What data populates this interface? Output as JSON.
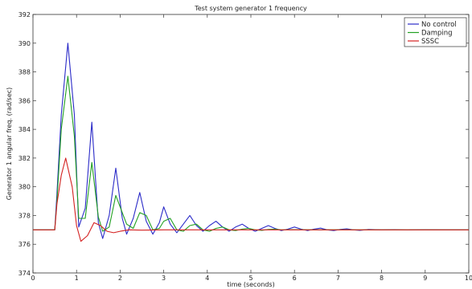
{
  "chart_data": {
    "type": "line",
    "title": "Test system generator 1 frequency",
    "xlabel": "time (seconds)",
    "ylabel": "Generator 1 angular freq. (rad/sec)",
    "xlim": [
      0,
      10
    ],
    "ylim": [
      374,
      392
    ],
    "xticks": [
      "0",
      "1",
      "2",
      "3",
      "4",
      "5",
      "6",
      "7",
      "8",
      "9",
      "10"
    ],
    "yticks": [
      "374",
      "376",
      "378",
      "380",
      "382",
      "384",
      "386",
      "388",
      "390",
      "392"
    ],
    "grid": false,
    "legend_position": "top-right",
    "series": [
      {
        "name": "No control",
        "color": "#2b2bc8",
        "x": [
          0,
          0.5,
          0.55,
          0.65,
          0.8,
          0.95,
          1.05,
          1.2,
          1.35,
          1.5,
          1.6,
          1.75,
          1.9,
          2.05,
          2.15,
          2.3,
          2.45,
          2.6,
          2.75,
          2.9,
          3.0,
          3.15,
          3.3,
          3.45,
          3.6,
          3.75,
          3.9,
          4.05,
          4.2,
          4.35,
          4.5,
          4.65,
          4.8,
          4.95,
          5.1,
          5.25,
          5.4,
          5.55,
          5.7,
          5.85,
          6.0,
          6.15,
          6.3,
          6.45,
          6.6,
          6.75,
          6.9,
          7.05,
          7.2,
          7.35,
          7.5,
          7.7,
          8.0,
          8.3,
          8.6,
          9.0,
          9.5,
          10
        ],
        "y": [
          377.0,
          377.0,
          379.5,
          385.0,
          390.0,
          385.0,
          377.2,
          378.5,
          384.5,
          377.5,
          376.4,
          378.0,
          381.3,
          377.8,
          376.7,
          377.8,
          379.6,
          377.6,
          376.7,
          377.5,
          378.6,
          377.4,
          376.8,
          377.4,
          378.0,
          377.3,
          376.9,
          377.3,
          377.6,
          377.2,
          376.9,
          377.2,
          377.4,
          377.1,
          376.9,
          377.1,
          377.3,
          377.1,
          376.95,
          377.05,
          377.2,
          377.05,
          376.95,
          377.05,
          377.12,
          377.0,
          376.95,
          377.03,
          377.07,
          377.0,
          376.97,
          377.03,
          377.0,
          377.02,
          376.99,
          377.01,
          377.0,
          377.0
        ]
      },
      {
        "name": "Damping",
        "color": "#22a022",
        "x": [
          0,
          0.5,
          0.55,
          0.65,
          0.8,
          0.95,
          1.05,
          1.2,
          1.35,
          1.5,
          1.6,
          1.75,
          1.9,
          2.05,
          2.15,
          2.3,
          2.45,
          2.6,
          2.75,
          2.9,
          3.0,
          3.15,
          3.3,
          3.45,
          3.6,
          3.75,
          3.9,
          4.05,
          4.2,
          4.35,
          4.5,
          4.65,
          4.8,
          4.95,
          5.1,
          5.25,
          5.4,
          5.55,
          5.7,
          6.0,
          6.5,
          7.0,
          7.5,
          8.0,
          9.0,
          10
        ],
        "y": [
          377.0,
          377.0,
          379.0,
          384.0,
          387.7,
          383.5,
          377.8,
          377.8,
          381.7,
          377.9,
          376.9,
          377.2,
          379.4,
          378.2,
          377.4,
          377.1,
          378.2,
          378.0,
          377.0,
          377.1,
          377.6,
          377.8,
          377.0,
          376.9,
          377.3,
          377.4,
          377.0,
          376.9,
          377.1,
          377.2,
          377.0,
          376.95,
          377.05,
          377.1,
          377.0,
          376.97,
          377.03,
          377.05,
          377.0,
          377.02,
          377.0,
          377.01,
          377.0,
          377.0,
          377.0,
          377.0
        ]
      },
      {
        "name": "SSSC",
        "color": "#d42020",
        "x": [
          0,
          0.5,
          0.55,
          0.65,
          0.75,
          0.9,
          1.0,
          1.1,
          1.25,
          1.4,
          1.55,
          1.7,
          1.85,
          2.0,
          2.2,
          2.5,
          3.0,
          4.0,
          5.0,
          6.0,
          7.0,
          8.0,
          9.0,
          10
        ],
        "y": [
          377.0,
          377.0,
          378.8,
          380.8,
          382.0,
          380.0,
          377.3,
          376.2,
          376.6,
          377.5,
          377.3,
          376.9,
          376.8,
          376.9,
          377.0,
          376.98,
          377.0,
          377.0,
          377.0,
          377.0,
          377.0,
          377.0,
          377.0,
          377.0
        ]
      }
    ]
  }
}
